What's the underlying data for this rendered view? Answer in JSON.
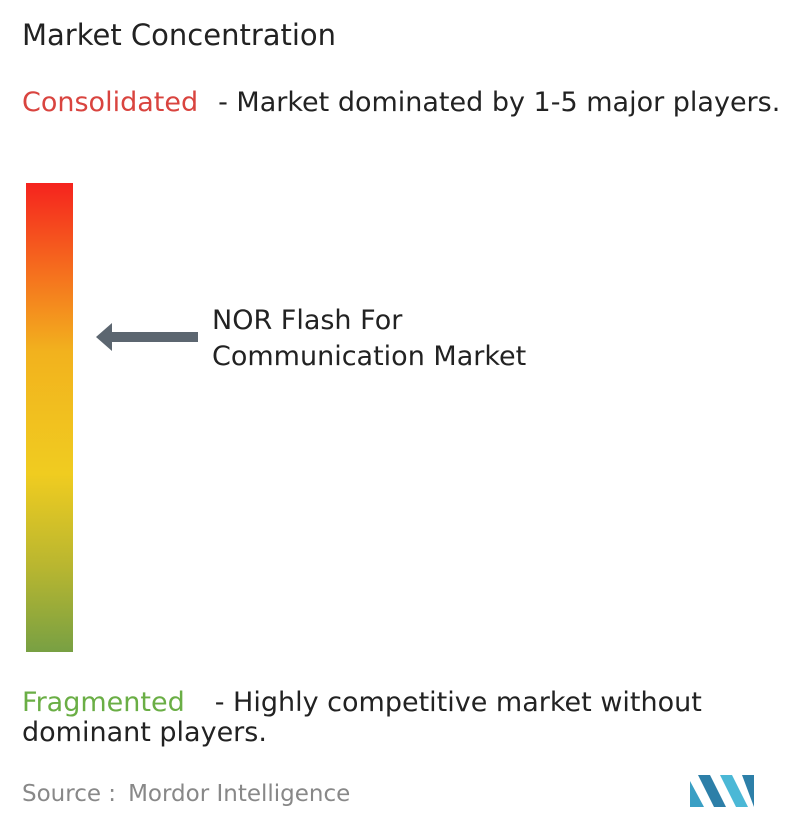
{
  "header": {
    "title": "Market Concentration"
  },
  "consolidated": {
    "label": "Consolidated",
    "description": "- Market dominated by 1-5 major players."
  },
  "marker": {
    "label": "NOR Flash For Communication Market"
  },
  "fragmented": {
    "label": "Fragmented",
    "description": "- Highly competitive market without dominant players."
  },
  "source": {
    "label": "Source :",
    "name": "Mordor Intelligence"
  }
}
